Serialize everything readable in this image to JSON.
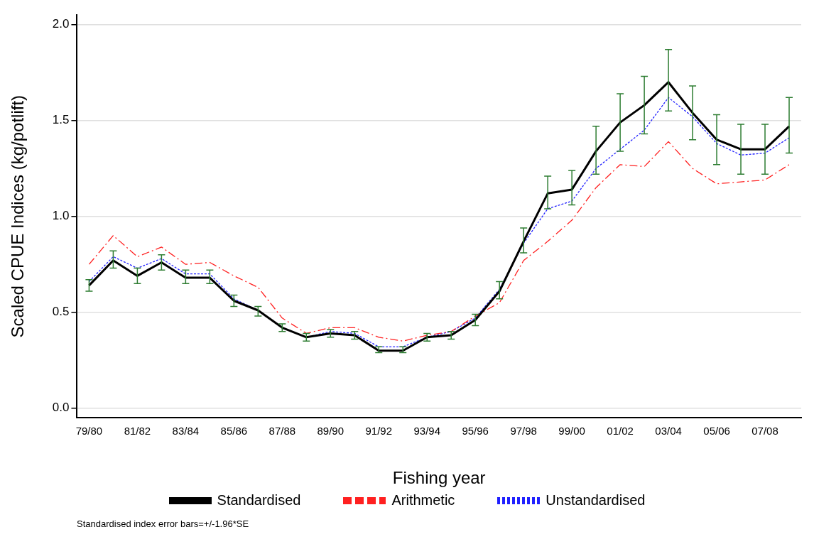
{
  "chart_data": {
    "type": "line",
    "xlabel": "Fishing year",
    "ylabel": "Scaled CPUE Indices (kg/potlift)",
    "categories": [
      "79/80",
      null,
      "81/82",
      null,
      "83/84",
      null,
      "85/86",
      null,
      "87/88",
      null,
      "89/90",
      null,
      "91/92",
      null,
      "93/94",
      null,
      "95/96",
      null,
      "97/98",
      null,
      "99/00",
      null,
      "01/02",
      null,
      "03/04",
      null,
      "05/06",
      null,
      "07/08",
      null
    ],
    "series": [
      {
        "name": "Standardised",
        "color": "#000000",
        "line_style": "solid",
        "values": [
          0.64,
          0.77,
          0.69,
          0.76,
          0.68,
          0.68,
          0.56,
          0.51,
          0.42,
          0.37,
          0.39,
          0.38,
          0.3,
          0.3,
          0.37,
          0.38,
          0.46,
          0.61,
          0.87,
          1.12,
          1.14,
          1.34,
          1.49,
          1.58,
          1.7,
          1.54,
          1.4,
          1.35,
          1.35,
          1.47
        ],
        "errors": [
          [
            0.61,
            0.67
          ],
          [
            0.73,
            0.82
          ],
          [
            0.65,
            0.73
          ],
          [
            0.72,
            0.8
          ],
          [
            0.65,
            0.72
          ],
          [
            0.65,
            0.72
          ],
          [
            0.53,
            0.59
          ],
          [
            0.48,
            0.53
          ],
          [
            0.4,
            0.44
          ],
          [
            0.35,
            0.39
          ],
          [
            0.37,
            0.41
          ],
          [
            0.36,
            0.4
          ],
          [
            0.29,
            0.32
          ],
          [
            0.29,
            0.32
          ],
          [
            0.35,
            0.39
          ],
          [
            0.36,
            0.4
          ],
          [
            0.43,
            0.49
          ],
          [
            0.57,
            0.66
          ],
          [
            0.81,
            0.94
          ],
          [
            1.04,
            1.21
          ],
          [
            1.06,
            1.24
          ],
          [
            1.22,
            1.47
          ],
          [
            1.34,
            1.64
          ],
          [
            1.43,
            1.73
          ],
          [
            1.55,
            1.87
          ],
          [
            1.4,
            1.68
          ],
          [
            1.27,
            1.53
          ],
          [
            1.22,
            1.48
          ],
          [
            1.22,
            1.48
          ],
          [
            1.33,
            1.62
          ]
        ]
      },
      {
        "name": "Arithmetic",
        "color": "#ff2020",
        "line_style": "dashed",
        "values": [
          0.75,
          0.9,
          0.79,
          0.84,
          0.75,
          0.76,
          0.69,
          0.63,
          0.47,
          0.39,
          0.42,
          0.42,
          0.37,
          0.35,
          0.38,
          0.4,
          0.48,
          0.55,
          0.77,
          0.87,
          0.98,
          1.15,
          1.27,
          1.26,
          1.39,
          1.25,
          1.17,
          1.18,
          1.19,
          1.27
        ]
      },
      {
        "name": "Unstandardised",
        "color": "#2020ff",
        "line_style": "dotted",
        "values": [
          0.66,
          0.79,
          0.73,
          0.78,
          0.7,
          0.7,
          0.57,
          0.51,
          0.42,
          0.37,
          0.4,
          0.39,
          0.32,
          0.32,
          0.37,
          0.4,
          0.47,
          0.62,
          0.86,
          1.04,
          1.08,
          1.25,
          1.35,
          1.45,
          1.62,
          1.52,
          1.38,
          1.32,
          1.33,
          1.41
        ]
      }
    ],
    "ylim": [
      -0.05,
      2.05
    ],
    "yticks": [
      {
        "value": 0,
        "label": "0.0"
      },
      {
        "value": 0.5,
        "label": "0.5"
      },
      {
        "value": 1,
        "label": "1.0"
      },
      {
        "value": 1.5,
        "label": "1.5"
      },
      {
        "value": 2,
        "label": "2.0"
      }
    ],
    "grid": "y",
    "legend": "bottom",
    "marker": "none",
    "annotations": [
      "Standardised index error bars=+/-1.96*SE"
    ]
  }
}
